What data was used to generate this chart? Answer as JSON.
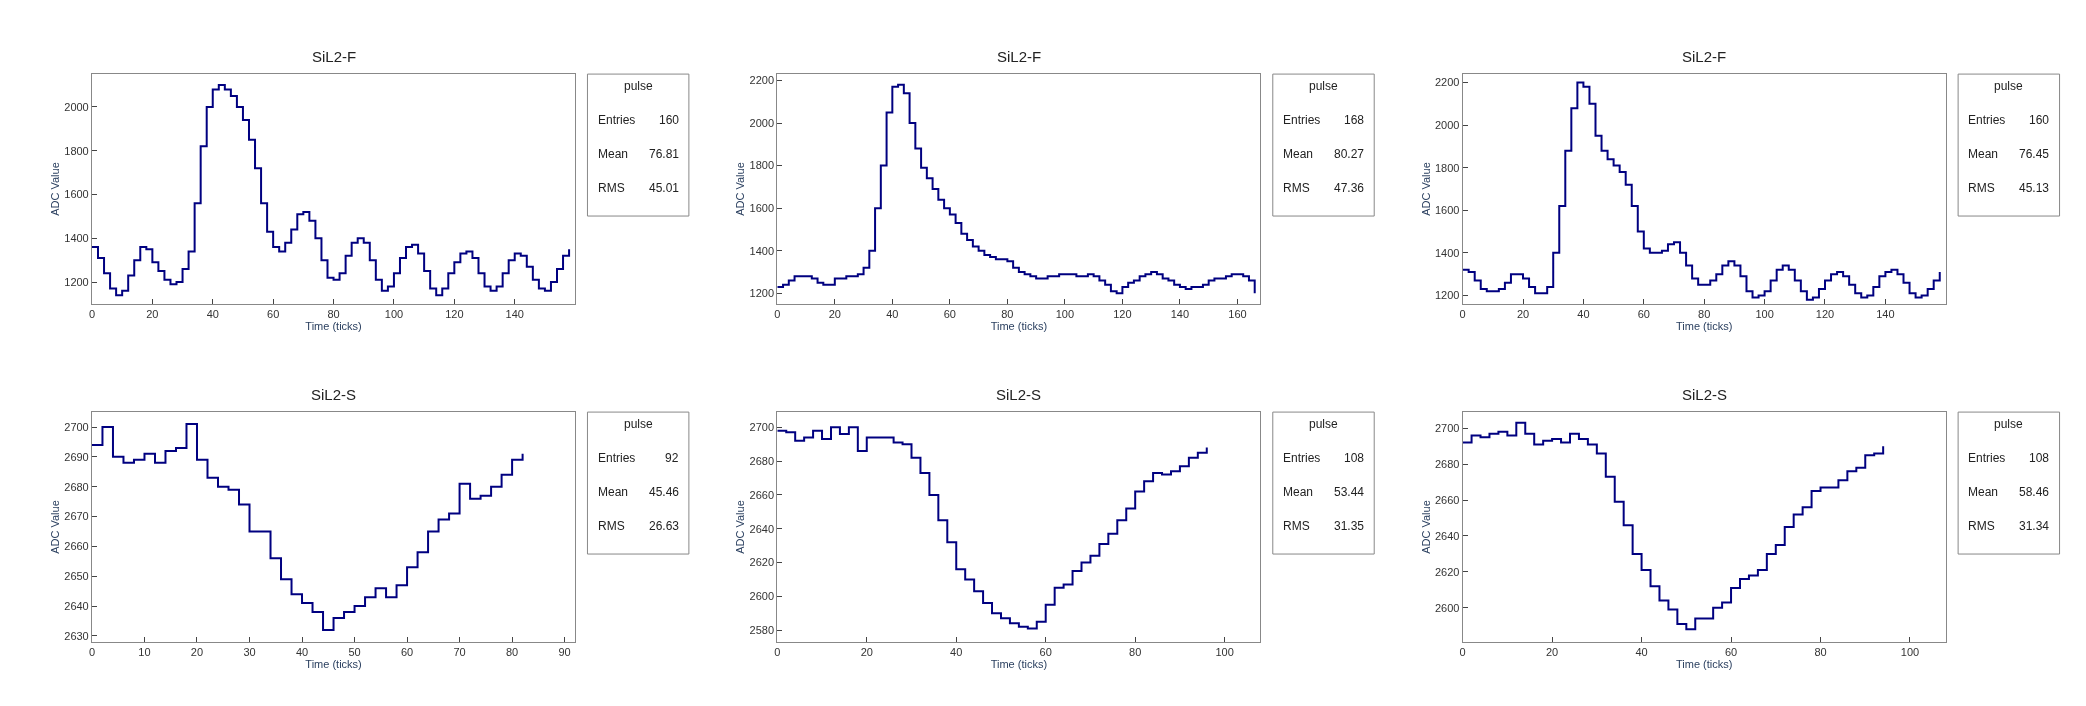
{
  "chart_data": [
    {
      "type": "step",
      "title": "SiL2-F",
      "xlabel": "Time (ticks)",
      "ylabel": "ADC Value",
      "annotations": [
        "pulse",
        "Entries",
        "160",
        "Mean",
        "76.81",
        "RMS",
        "45.01"
      ],
      "xlim": [
        0,
        160
      ],
      "xticks": [
        0,
        20,
        40,
        60,
        80,
        100,
        120,
        140
      ],
      "ylim": [
        1100,
        2150
      ],
      "yticks": [
        1200,
        1400,
        1600,
        1800,
        2000
      ],
      "grid": false,
      "series": [
        {
          "color": "#000080",
          "x": [
            0,
            2,
            4,
            6,
            8,
            10,
            12,
            14,
            16,
            18,
            20,
            22,
            24,
            26,
            28,
            30,
            32,
            34,
            36,
            38,
            40,
            42,
            44,
            46,
            48,
            50,
            52,
            54,
            56,
            58,
            60,
            62,
            64,
            66,
            68,
            70,
            72,
            74,
            76,
            78,
            80,
            82,
            84,
            86,
            88,
            90,
            92,
            94,
            96,
            98,
            100,
            102,
            104,
            106,
            108,
            110,
            112,
            114,
            116,
            118,
            120,
            122,
            124,
            126,
            128,
            130,
            132,
            134,
            136,
            138,
            140,
            142,
            144,
            146,
            148,
            150,
            152,
            154,
            156,
            158
          ],
          "values": [
            1360,
            1310,
            1240,
            1170,
            1140,
            1160,
            1230,
            1300,
            1360,
            1350,
            1290,
            1250,
            1210,
            1190,
            1200,
            1260,
            1340,
            1560,
            1820,
            2000,
            2080,
            2100,
            2080,
            2050,
            2000,
            1940,
            1850,
            1720,
            1560,
            1430,
            1360,
            1340,
            1380,
            1440,
            1510,
            1520,
            1480,
            1400,
            1300,
            1220,
            1210,
            1240,
            1320,
            1380,
            1400,
            1380,
            1300,
            1210,
            1160,
            1180,
            1240,
            1310,
            1360,
            1370,
            1330,
            1250,
            1170,
            1140,
            1170,
            1240,
            1290,
            1330,
            1340,
            1310,
            1240,
            1180,
            1160,
            1180,
            1240,
            1300,
            1330,
            1320,
            1270,
            1210,
            1170,
            1160,
            1200,
            1260,
            1320,
            1350
          ]
        }
      ]
    },
    {
      "type": "step",
      "title": "SiL2-F",
      "xlabel": "Time (ticks)",
      "ylabel": "ADC Value",
      "annotations": [
        "pulse",
        "Entries",
        "168",
        "Mean",
        "80.27",
        "RMS",
        "47.36"
      ],
      "xlim": [
        0,
        168
      ],
      "xticks": [
        0,
        20,
        40,
        60,
        80,
        100,
        120,
        140,
        160
      ],
      "ylim": [
        1150,
        2230
      ],
      "yticks": [
        1200,
        1400,
        1600,
        1800,
        2000,
        2200
      ],
      "grid": false,
      "series": [
        {
          "color": "#000080",
          "x": [
            0,
            2,
            4,
            6,
            8,
            10,
            12,
            14,
            16,
            18,
            20,
            22,
            24,
            26,
            28,
            30,
            32,
            34,
            36,
            38,
            40,
            42,
            44,
            46,
            48,
            50,
            52,
            54,
            56,
            58,
            60,
            62,
            64,
            66,
            68,
            70,
            72,
            74,
            76,
            78,
            80,
            82,
            84,
            86,
            88,
            90,
            92,
            94,
            96,
            98,
            100,
            102,
            104,
            106,
            108,
            110,
            112,
            114,
            116,
            118,
            120,
            122,
            124,
            126,
            128,
            130,
            132,
            134,
            136,
            138,
            140,
            142,
            144,
            146,
            148,
            150,
            152,
            154,
            156,
            158,
            160,
            162,
            164,
            166
          ],
          "values": [
            1230,
            1240,
            1260,
            1280,
            1280,
            1280,
            1270,
            1250,
            1240,
            1240,
            1270,
            1270,
            1280,
            1280,
            1290,
            1320,
            1400,
            1600,
            1800,
            2050,
            2170,
            2180,
            2140,
            2000,
            1880,
            1790,
            1740,
            1690,
            1640,
            1600,
            1570,
            1530,
            1480,
            1450,
            1420,
            1400,
            1380,
            1370,
            1360,
            1360,
            1350,
            1320,
            1300,
            1290,
            1280,
            1270,
            1270,
            1280,
            1280,
            1290,
            1290,
            1290,
            1280,
            1280,
            1290,
            1280,
            1260,
            1240,
            1210,
            1200,
            1230,
            1250,
            1260,
            1280,
            1290,
            1300,
            1290,
            1270,
            1260,
            1240,
            1230,
            1220,
            1230,
            1230,
            1240,
            1260,
            1270,
            1270,
            1280,
            1290,
            1290,
            1280,
            1260,
            1200
          ]
        }
      ]
    },
    {
      "type": "step",
      "title": "SiL2-F",
      "xlabel": "Time (ticks)",
      "ylabel": "ADC Value",
      "annotations": [
        "pulse",
        "Entries",
        "160",
        "Mean",
        "76.45",
        "RMS",
        "45.13"
      ],
      "xlim": [
        0,
        160
      ],
      "xticks": [
        0,
        20,
        40,
        60,
        80,
        100,
        120,
        140
      ],
      "ylim": [
        1160,
        2240
      ],
      "yticks": [
        1200,
        1400,
        1600,
        1800,
        2000,
        2200
      ],
      "grid": false,
      "series": [
        {
          "color": "#000080",
          "x": [
            0,
            2,
            4,
            6,
            8,
            10,
            12,
            14,
            16,
            18,
            20,
            22,
            24,
            26,
            28,
            30,
            32,
            34,
            36,
            38,
            40,
            42,
            44,
            46,
            48,
            50,
            52,
            54,
            56,
            58,
            60,
            62,
            64,
            66,
            68,
            70,
            72,
            74,
            76,
            78,
            80,
            82,
            84,
            86,
            88,
            90,
            92,
            94,
            96,
            98,
            100,
            102,
            104,
            106,
            108,
            110,
            112,
            114,
            116,
            118,
            120,
            122,
            124,
            126,
            128,
            130,
            132,
            134,
            136,
            138,
            140,
            142,
            144,
            146,
            148,
            150,
            152,
            154,
            156,
            158
          ],
          "values": [
            1320,
            1310,
            1270,
            1230,
            1220,
            1220,
            1230,
            1260,
            1300,
            1300,
            1280,
            1240,
            1210,
            1210,
            1240,
            1400,
            1620,
            1880,
            2080,
            2200,
            2180,
            2100,
            1950,
            1880,
            1840,
            1810,
            1780,
            1720,
            1620,
            1500,
            1420,
            1400,
            1400,
            1410,
            1440,
            1450,
            1400,
            1340,
            1280,
            1250,
            1250,
            1270,
            1300,
            1340,
            1360,
            1340,
            1290,
            1220,
            1190,
            1200,
            1220,
            1270,
            1320,
            1340,
            1320,
            1270,
            1220,
            1180,
            1190,
            1230,
            1270,
            1300,
            1310,
            1290,
            1250,
            1210,
            1190,
            1200,
            1240,
            1290,
            1310,
            1320,
            1300,
            1260,
            1210,
            1190,
            1200,
            1230,
            1270,
            1310
          ]
        }
      ]
    },
    {
      "type": "step",
      "title": "SiL2-S",
      "xlabel": "Time (ticks)",
      "ylabel": "ADC Value",
      "annotations": [
        "pulse",
        "Entries",
        "92",
        "Mean",
        "45.46",
        "RMS",
        "26.63"
      ],
      "xlim": [
        0,
        92
      ],
      "xticks": [
        0,
        10,
        20,
        30,
        40,
        50,
        60,
        70,
        80,
        90
      ],
      "ylim": [
        2628,
        2705
      ],
      "yticks": [
        2630,
        2640,
        2650,
        2660,
        2670,
        2680,
        2690,
        2700
      ],
      "grid": false,
      "series": [
        {
          "color": "#000080",
          "x": [
            0,
            2,
            4,
            6,
            8,
            10,
            12,
            14,
            16,
            18,
            20,
            22,
            24,
            26,
            28,
            30,
            32,
            34,
            36,
            38,
            40,
            42,
            44,
            46,
            48,
            50,
            52,
            54,
            56,
            58,
            60,
            62,
            64,
            66,
            68,
            70,
            72,
            74,
            76,
            78,
            80,
            82
          ],
          "values": [
            2694,
            2700,
            2690,
            2688,
            2689,
            2691,
            2688,
            2692,
            2693,
            2701,
            2689,
            2683,
            2680,
            2679,
            2674,
            2665,
            2665,
            2656,
            2649,
            2644,
            2641,
            2638,
            2632,
            2636,
            2638,
            2640,
            2643,
            2646,
            2643,
            2647,
            2653,
            2658,
            2665,
            2669,
            2671,
            2681,
            2676,
            2677,
            2680,
            2684,
            2689,
            2691
          ]
        }
      ]
    },
    {
      "type": "step",
      "title": "SiL2-S",
      "xlabel": "Time (ticks)",
      "ylabel": "ADC Value",
      "annotations": [
        "pulse",
        "Entries",
        "108",
        "Mean",
        "53.44",
        "RMS",
        "31.35"
      ],
      "xlim": [
        0,
        108
      ],
      "xticks": [
        0,
        20,
        40,
        60,
        80,
        100
      ],
      "ylim": [
        2573,
        2709
      ],
      "yticks": [
        2580,
        2600,
        2620,
        2640,
        2660,
        2680,
        2700
      ],
      "grid": false,
      "series": [
        {
          "color": "#000080",
          "x": [
            0,
            2,
            4,
            6,
            8,
            10,
            12,
            14,
            16,
            18,
            20,
            22,
            24,
            26,
            28,
            30,
            32,
            34,
            36,
            38,
            40,
            42,
            44,
            46,
            48,
            50,
            52,
            54,
            56,
            58,
            60,
            62,
            64,
            66,
            68,
            70,
            72,
            74,
            76,
            78,
            80,
            82,
            84,
            86,
            88,
            90,
            92,
            94,
            96
          ],
          "values": [
            2698,
            2697,
            2692,
            2694,
            2698,
            2693,
            2700,
            2696,
            2700,
            2686,
            2694,
            2694,
            2694,
            2691,
            2690,
            2682,
            2673,
            2660,
            2645,
            2632,
            2616,
            2610,
            2603,
            2596,
            2590,
            2587,
            2584,
            2582,
            2581,
            2585,
            2595,
            2605,
            2607,
            2615,
            2620,
            2624,
            2631,
            2637,
            2645,
            2652,
            2662,
            2668,
            2673,
            2672,
            2674,
            2677,
            2682,
            2685,
            2688
          ]
        }
      ]
    },
    {
      "type": "step",
      "title": "SiL2-S",
      "xlabel": "Time (ticks)",
      "ylabel": "ADC Value",
      "annotations": [
        "pulse",
        "Entries",
        "108",
        "Mean",
        "58.46",
        "RMS",
        "31.34"
      ],
      "xlim": [
        0,
        108
      ],
      "xticks": [
        0,
        20,
        40,
        60,
        80,
        100
      ],
      "ylim": [
        2581,
        2709
      ],
      "yticks": [
        2600,
        2620,
        2640,
        2660,
        2680,
        2700
      ],
      "grid": false,
      "series": [
        {
          "color": "#000080",
          "x": [
            0,
            2,
            4,
            6,
            8,
            10,
            12,
            14,
            16,
            18,
            20,
            22,
            24,
            26,
            28,
            30,
            32,
            34,
            36,
            38,
            40,
            42,
            44,
            46,
            48,
            50,
            52,
            54,
            56,
            58,
            60,
            62,
            64,
            66,
            68,
            70,
            72,
            74,
            76,
            78,
            80,
            82,
            84,
            86,
            88,
            90,
            92,
            94
          ],
          "values": [
            2692,
            2696,
            2695,
            2697,
            2698,
            2696,
            2703,
            2697,
            2691,
            2693,
            2694,
            2692,
            2697,
            2694,
            2691,
            2686,
            2673,
            2659,
            2646,
            2630,
            2621,
            2612,
            2604,
            2599,
            2591,
            2588,
            2594,
            2594,
            2600,
            2603,
            2611,
            2616,
            2618,
            2621,
            2630,
            2635,
            2645,
            2652,
            2656,
            2665,
            2667,
            2667,
            2671,
            2676,
            2678,
            2685,
            2686,
            2690
          ]
        }
      ]
    }
  ]
}
